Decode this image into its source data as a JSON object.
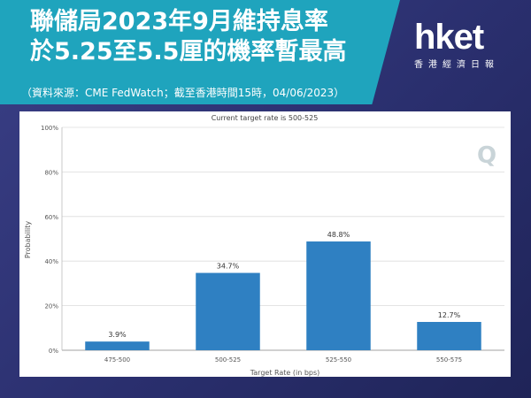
{
  "header": {
    "title_line1": "聯儲局2023年9月維持息率",
    "title_line2": "於5.25至5.5厘的機率暫最高",
    "source": "（資料來源：CME FedWatch；截至香港時間15時，04/06/2023）"
  },
  "logo": {
    "main": "hket",
    "sub": "香港經濟日報"
  },
  "watermark": "Q",
  "colors": {
    "bar": "#2f80c2",
    "banner": "#1fa4bd",
    "background": "#2f3478"
  },
  "chart_data": {
    "type": "bar",
    "title": "Current target rate is 500-525",
    "xlabel": "Target Rate (in bps)",
    "ylabel": "Probability",
    "categories": [
      "475-500",
      "500-525",
      "525-550",
      "550-575"
    ],
    "values": [
      3.9,
      34.7,
      48.8,
      12.7
    ],
    "value_labels": [
      "3.9%",
      "34.7%",
      "48.8%",
      "12.7%"
    ],
    "yticks": [
      0,
      20,
      40,
      60,
      80,
      100
    ],
    "ytick_labels": [
      "0%",
      "20%",
      "40%",
      "60%",
      "80%",
      "100%"
    ],
    "ylim": [
      0,
      100
    ],
    "grid": true,
    "legend": "none"
  }
}
